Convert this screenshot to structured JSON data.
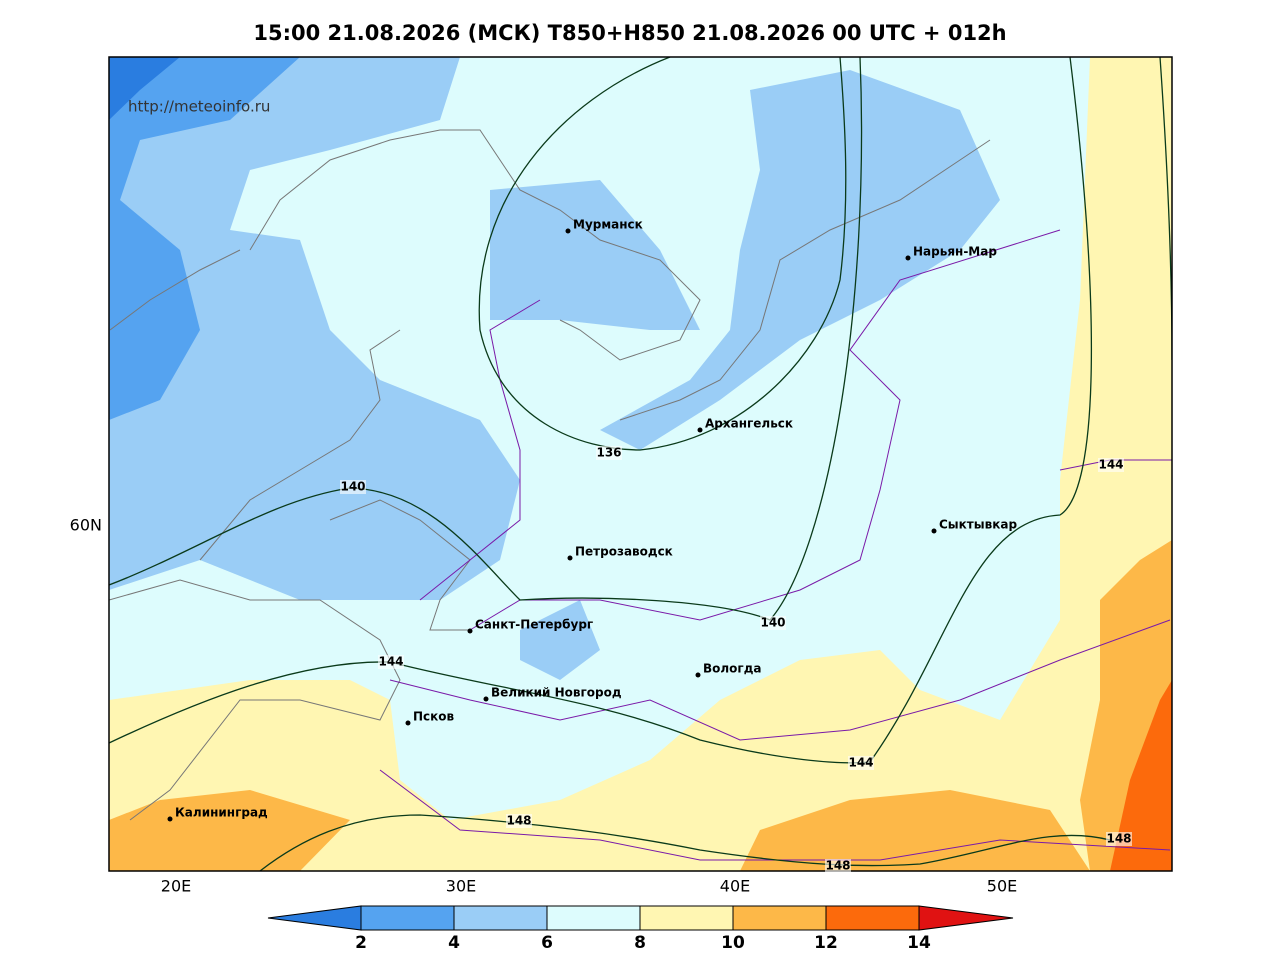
{
  "title": "15:00 21.08.2026 (МСК) T850+H850 21.08.2026 00 UTC + 012h",
  "source_url": "http://meteoinfo.ru",
  "axes": {
    "longitude_labels": [
      "20E",
      "30E",
      "40E",
      "50E"
    ],
    "latitude_labels": [
      "60N"
    ]
  },
  "cities": [
    "Мурманск",
    "Нарьян-Мар",
    "Архангельск",
    "Сыктывкар",
    "Петрозаводск",
    "Санкт-Петербург",
    "Вологда",
    "Великий Новгород",
    "Псков",
    "Калининград"
  ],
  "contour_labels": [
    136,
    140,
    140,
    144,
    144,
    144,
    148,
    148,
    148
  ],
  "colorbar": {
    "ticks": [
      2,
      4,
      6,
      8,
      10,
      12,
      14
    ],
    "colors": [
      "#2a7de0",
      "#55a3f0",
      "#9acdf6",
      "#ddfcfd",
      "#fff6b2",
      "#fdb848",
      "#fc6a0c",
      "#e01212"
    ]
  }
}
